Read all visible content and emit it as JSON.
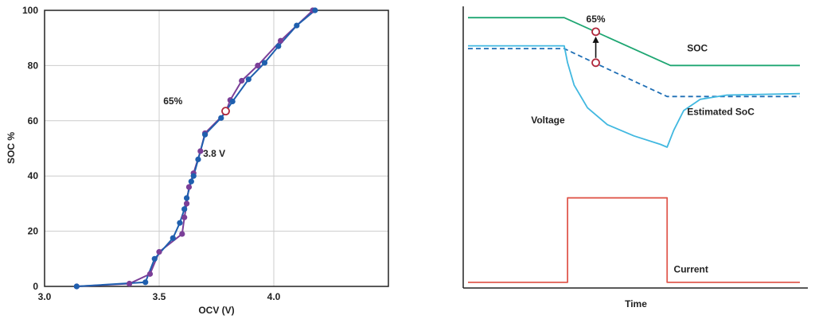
{
  "chart_data": [
    {
      "type": "line",
      "xlabel": "OCV (V)",
      "ylabel": "SOC %",
      "xlim": [
        3.0,
        4.5
      ],
      "ylim": [
        0,
        100
      ],
      "xticks": [
        "3.0",
        "3.5",
        "4.0"
      ],
      "yticks": [
        "0",
        "20",
        "40",
        "60",
        "80",
        "100"
      ],
      "grid": true,
      "series": [
        {
          "color": "#7b3f98",
          "points": [
            [
              3.14,
              0
            ],
            [
              3.37,
              1
            ],
            [
              3.46,
              4.5
            ],
            [
              3.5,
              12.5
            ],
            [
              3.6,
              19
            ],
            [
              3.61,
              25
            ],
            [
              3.62,
              30
            ],
            [
              3.63,
              36
            ],
            [
              3.65,
              41
            ],
            [
              3.68,
              49
            ],
            [
              3.7,
              55.5
            ],
            [
              3.79,
              63
            ],
            [
              3.81,
              67.5
            ],
            [
              3.86,
              74.5
            ],
            [
              3.93,
              80
            ],
            [
              4.03,
              89
            ],
            [
              4.17,
              100
            ]
          ]
        },
        {
          "color": "#1f5fae",
          "points": [
            [
              3.14,
              0
            ],
            [
              3.44,
              1.5
            ],
            [
              3.48,
              10
            ],
            [
              3.56,
              17.5
            ],
            [
              3.59,
              23
            ],
            [
              3.61,
              28
            ],
            [
              3.62,
              32
            ],
            [
              3.64,
              38
            ],
            [
              3.65,
              40
            ],
            [
              3.67,
              46
            ],
            [
              3.7,
              55
            ],
            [
              3.77,
              61
            ],
            [
              3.82,
              67
            ],
            [
              3.89,
              75
            ],
            [
              3.96,
              81
            ],
            [
              4.02,
              87
            ],
            [
              4.1,
              94.5
            ],
            [
              4.18,
              100
            ]
          ]
        }
      ],
      "highlight": {
        "x": 3.79,
        "y": 63.5,
        "color": "#b0283c"
      },
      "annotations": [
        {
          "text": "65%",
          "x": 3.56,
          "y": 66
        },
        {
          "text": "3.8 V",
          "x": 3.74,
          "y": 47
        }
      ]
    },
    {
      "type": "line",
      "xlabel": "Time",
      "ylabel": "",
      "series": [
        {
          "name": "SOC",
          "color": "#1ea672",
          "style": "solid",
          "points": [
            [
              0,
              96
            ],
            [
              0.29,
              96
            ],
            [
              0.61,
              79
            ],
            [
              1.0,
              79
            ]
          ]
        },
        {
          "name": "Estimated SoC",
          "color": "#1f6fb5",
          "style": "dashed",
          "points": [
            [
              0,
              85
            ],
            [
              0.29,
              85
            ],
            [
              0.38,
              80
            ],
            [
              0.6,
              68
            ],
            [
              1.0,
              68
            ]
          ]
        },
        {
          "name": "Voltage",
          "color": "#41b8e0",
          "style": "solid",
          "points": [
            [
              0,
              86
            ],
            [
              0.29,
              86
            ],
            [
              0.3,
              80
            ],
            [
              0.32,
              72
            ],
            [
              0.36,
              64
            ],
            [
              0.42,
              58
            ],
            [
              0.5,
              54
            ],
            [
              0.58,
              51
            ],
            [
              0.6,
              50
            ],
            [
              0.62,
              56
            ],
            [
              0.65,
              63
            ],
            [
              0.7,
              67
            ],
            [
              0.78,
              68.5
            ],
            [
              1.0,
              69
            ]
          ]
        },
        {
          "name": "Current",
          "color": "#e05a4f",
          "style": "solid",
          "points": [
            [
              0,
              2
            ],
            [
              0.3,
              2
            ],
            [
              0.3,
              32
            ],
            [
              0.6,
              32
            ],
            [
              0.6,
              2
            ],
            [
              1.0,
              2
            ]
          ]
        }
      ],
      "highlights": [
        {
          "label": "65%",
          "x": 0.385,
          "y": 91,
          "color": "#b0283c"
        },
        {
          "x": 0.385,
          "y": 80,
          "color": "#b0283c"
        }
      ]
    }
  ]
}
